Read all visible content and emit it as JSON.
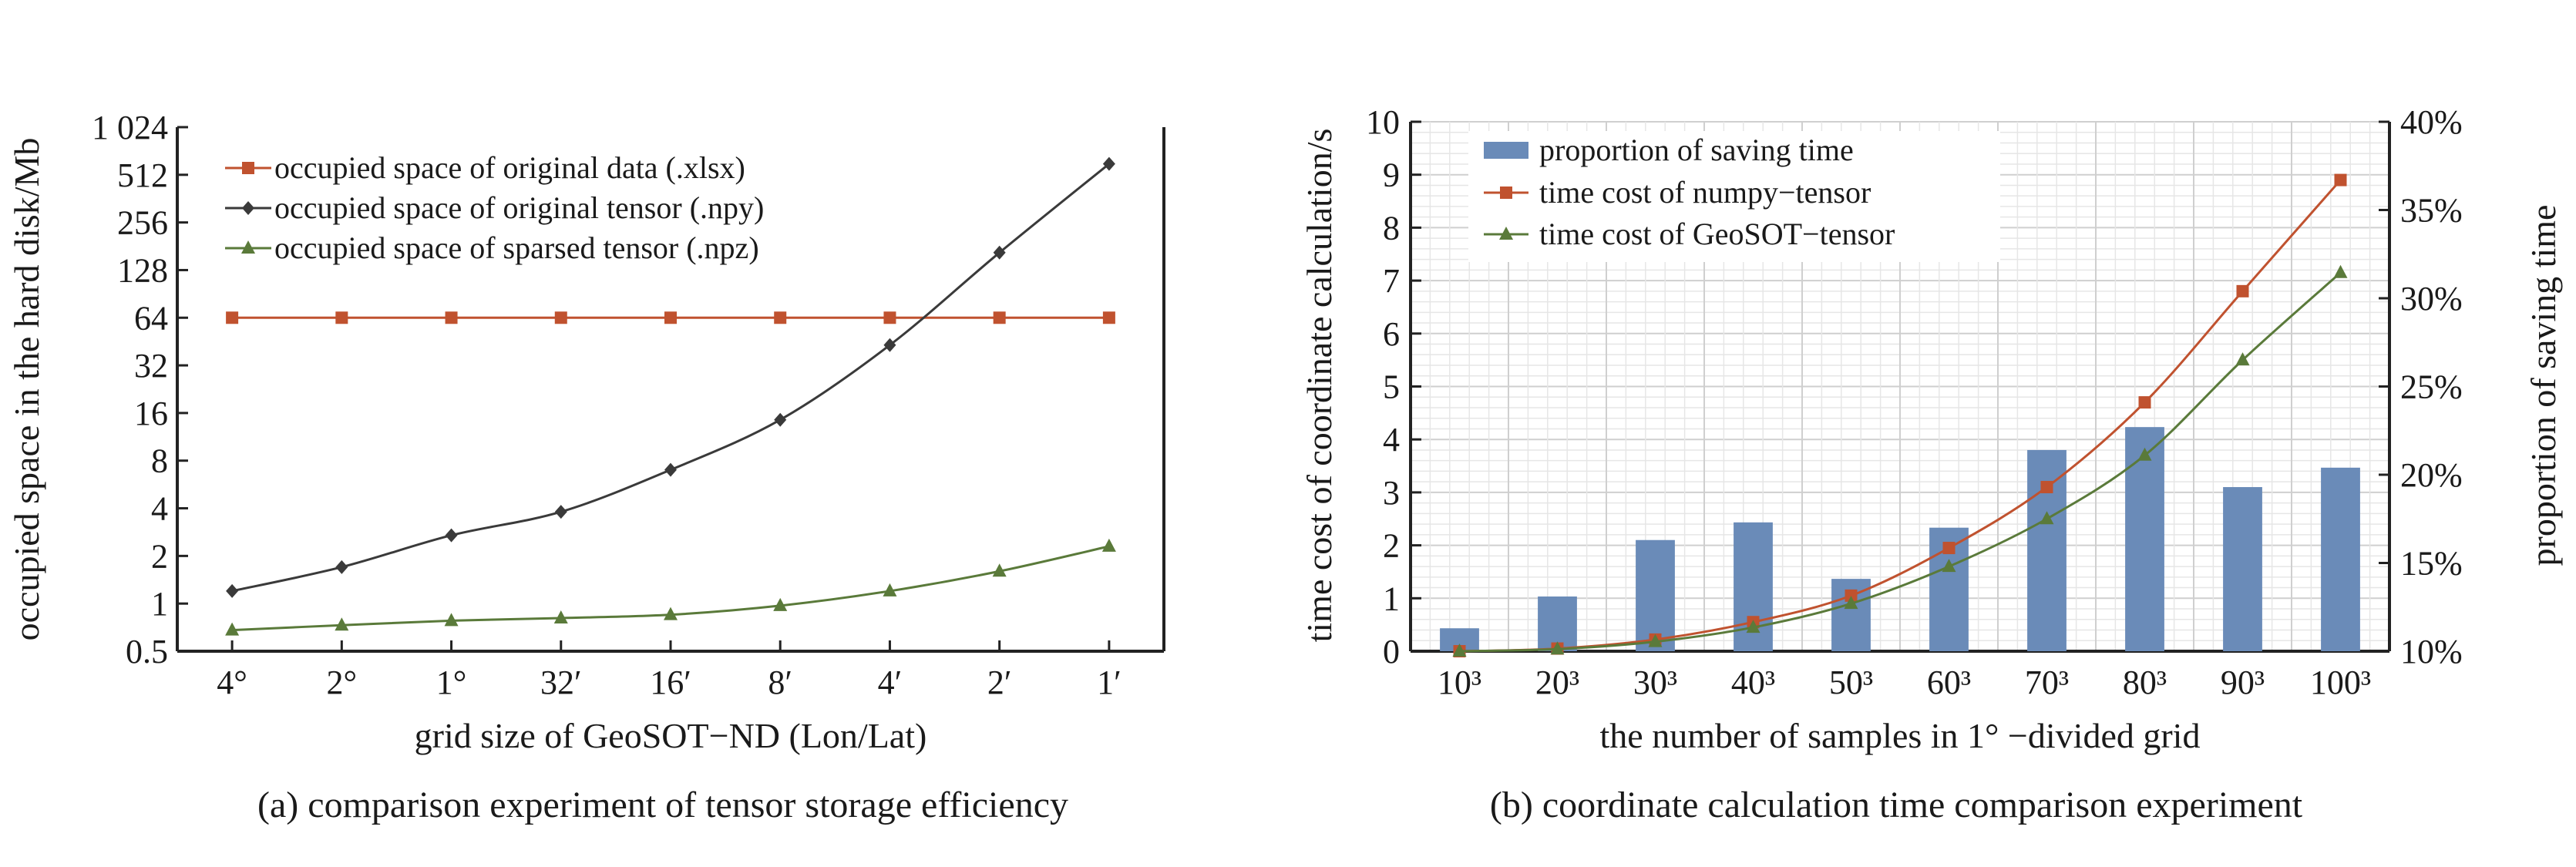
{
  "chart_data": [
    {
      "type": "line",
      "caption": "(a) comparison experiment of tensor storage efficiency",
      "xlabel": "grid size of GeoSOT−ND (Lon/Lat)",
      "ylabel": "occupied space in the hard disk/Mb",
      "yscale": "log2",
      "ylim": [
        0.5,
        1024
      ],
      "yticks": [
        0.5,
        1,
        2,
        4,
        8,
        16,
        32,
        64,
        128,
        256,
        512,
        1024
      ],
      "ytick_labels": [
        "0.5",
        "1",
        "2",
        "4",
        "8",
        "16",
        "32",
        "64",
        "128",
        "256",
        "512",
        "1 024"
      ],
      "categories": [
        "4°",
        "2°",
        "1°",
        "32′",
        "16′",
        "8′",
        "4′",
        "2′",
        "1′"
      ],
      "grid": false,
      "legend_position": "top-left",
      "series": [
        {
          "name": "occupied space of original data (.xlsx)",
          "color": "#c0522f",
          "marker": "square",
          "values": [
            64,
            64,
            64,
            64,
            64,
            64,
            64,
            64,
            64
          ]
        },
        {
          "name": "occupied space of original tensor (.npy)",
          "color": "#3a3a3a",
          "marker": "diamond",
          "values": [
            1.2,
            1.7,
            2.7,
            3.8,
            7,
            14.5,
            43,
            165,
            600
          ]
        },
        {
          "name": "occupied space of sparsed tensor (.npz)",
          "color": "#5a7a3a",
          "marker": "triangle",
          "values": [
            0.68,
            0.73,
            0.78,
            0.81,
            0.85,
            0.97,
            1.2,
            1.6,
            2.3
          ]
        }
      ]
    },
    {
      "type": "bar+line",
      "caption": "(b) coordinate calculation time comparison experiment",
      "xlabel": "the number of samples in 1° −divided grid",
      "ylabel": "time cost of coordinate calculation/s",
      "ylabel_right": "proportion of saving time",
      "ylim": [
        0,
        10
      ],
      "yticks": [
        0,
        1,
        2,
        3,
        4,
        5,
        6,
        7,
        8,
        9,
        10
      ],
      "ylim_right": [
        10,
        40
      ],
      "yticks_right": [
        "10%",
        "15%",
        "20%",
        "25%",
        "30%",
        "35%",
        "40%"
      ],
      "categories": [
        "10³",
        "20³",
        "30³",
        "40³",
        "50³",
        "60³",
        "70³",
        "80³",
        "90³",
        "100³"
      ],
      "grid": true,
      "legend_position": "top-left",
      "bars": {
        "name": "proportion of saving time",
        "color": "#6a8bb8",
        "axis": "right",
        "values": [
          11.3,
          13.1,
          16.3,
          17.3,
          14.1,
          17.0,
          21.4,
          22.7,
          19.3,
          20.4
        ]
      },
      "series": [
        {
          "name": "time cost of numpy−tensor",
          "color": "#c0522f",
          "marker": "square",
          "axis": "left",
          "values": [
            0.0,
            0.05,
            0.22,
            0.55,
            1.05,
            1.95,
            3.1,
            4.7,
            6.8,
            8.9
          ]
        },
        {
          "name": "time cost of GeoSOT−tensor",
          "color": "#5a7a3a",
          "marker": "triangle",
          "axis": "left",
          "values": [
            0.0,
            0.04,
            0.18,
            0.45,
            0.9,
            1.6,
            2.5,
            3.7,
            5.5,
            7.15
          ]
        }
      ]
    }
  ]
}
